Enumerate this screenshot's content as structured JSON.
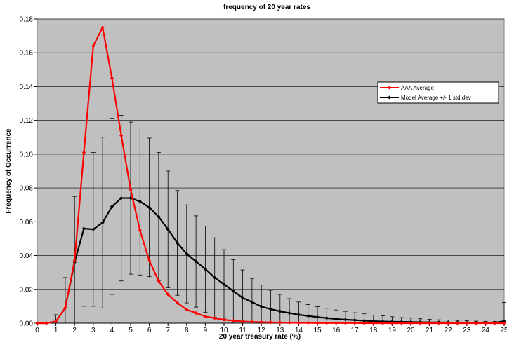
{
  "chart_data": {
    "type": "line",
    "title": "frequency of 20 year rates",
    "xlabel": "20 year treasury rate (%)",
    "ylabel": "Frequency of Occurrence",
    "xlim": [
      0,
      25
    ],
    "ylim": [
      0,
      0.18
    ],
    "xticks": [
      "0",
      "1",
      "2",
      "3",
      "4",
      "5",
      "6",
      "7",
      "8",
      "9",
      "10",
      "11",
      "12",
      "13",
      "14",
      "15",
      "16",
      "17",
      "18",
      "19",
      "20",
      "21",
      "22",
      "23",
      "24",
      "25"
    ],
    "yticks": [
      "0.00",
      "0.02",
      "0.04",
      "0.06",
      "0.08",
      "0.10",
      "0.12",
      "0.14",
      "0.16",
      "0.18"
    ],
    "grid": true,
    "legend_position": "right",
    "plot_background": "#c0c0c0",
    "x": [
      0,
      0.5,
      1,
      1.5,
      2,
      2.5,
      3,
      3.5,
      4,
      4.5,
      5,
      5.5,
      6,
      6.5,
      7,
      7.5,
      8,
      8.5,
      9,
      9.5,
      10,
      10.5,
      11,
      11.5,
      12,
      12.5,
      13,
      13.5,
      14,
      14.5,
      15,
      15.5,
      16,
      16.5,
      17,
      17.5,
      18,
      18.5,
      19,
      19.5,
      20,
      20.5,
      21,
      21.5,
      22,
      22.5,
      23,
      23.5,
      24,
      24.5,
      25
    ],
    "series": [
      {
        "name": "AAA Average",
        "color": "#ff0000",
        "values": [
          0,
          0,
          0.001,
          0.009,
          0.037,
          0.101,
          0.164,
          0.175,
          0.145,
          0.111,
          0.079,
          0.055,
          0.037,
          0.025,
          0.017,
          0.012,
          0.008,
          0.006,
          0.004,
          0.003,
          0.002,
          0.0015,
          0.001,
          0.0008,
          0.0006,
          0.0005,
          0.0004,
          0.0003,
          0.0002,
          0.0002,
          0.0001,
          0.0001,
          0.0001,
          0.0001,
          0.0001,
          0,
          0,
          0,
          0,
          0,
          0,
          0,
          0,
          0,
          0,
          0,
          0,
          0,
          0,
          0,
          0
        ]
      },
      {
        "name": "Model Average +/- 1 std dev",
        "color": "#000000",
        "values": [
          0,
          0,
          0.001,
          0.009,
          0.036,
          0.056,
          0.0555,
          0.0595,
          0.069,
          0.074,
          0.074,
          0.072,
          0.0685,
          0.063,
          0.0555,
          0.0475,
          0.041,
          0.0365,
          0.032,
          0.027,
          0.023,
          0.019,
          0.015,
          0.0125,
          0.0098,
          0.0083,
          0.007,
          0.006,
          0.005,
          0.0043,
          0.0036,
          0.003,
          0.0025,
          0.0021,
          0.0018,
          0.0015,
          0.0012,
          0.001,
          0.0009,
          0.0008,
          0.0007,
          0.0006,
          0.0005,
          0.0005,
          0.0004,
          0.0004,
          0.0003,
          0.0003,
          0.0003,
          0.0003,
          0.0012
        ],
        "upper": [
          0,
          0,
          0.005,
          0.027,
          0.075,
          0.1,
          0.101,
          0.11,
          0.121,
          0.123,
          0.119,
          0.1155,
          0.1095,
          0.101,
          0.09,
          0.0785,
          0.07,
          0.0635,
          0.0575,
          0.0505,
          0.0435,
          0.0375,
          0.0315,
          0.0265,
          0.0225,
          0.0195,
          0.017,
          0.0145,
          0.0125,
          0.011,
          0.0098,
          0.0088,
          0.0078,
          0.007,
          0.0062,
          0.0055,
          0.0048,
          0.0043,
          0.0038,
          0.0033,
          0.003,
          0.0026,
          0.0023,
          0.002,
          0.0018,
          0.0016,
          0.0014,
          0.0012,
          0.0011,
          0.001,
          0.0123
        ],
        "lower": [
          0,
          0,
          0,
          0,
          0,
          0.01,
          0.01,
          0.009,
          0.017,
          0.025,
          0.029,
          0.0285,
          0.0275,
          0.025,
          0.021,
          0.0165,
          0.012,
          0.0095,
          0.0065,
          0.0035,
          0.0025,
          0.0005,
          0,
          0,
          0,
          0,
          0,
          0,
          0,
          0,
          0,
          0,
          0,
          0,
          0,
          0,
          0,
          0,
          0,
          0,
          0,
          0,
          0,
          0,
          0,
          0,
          0,
          0,
          0,
          0,
          0
        ]
      }
    ]
  }
}
